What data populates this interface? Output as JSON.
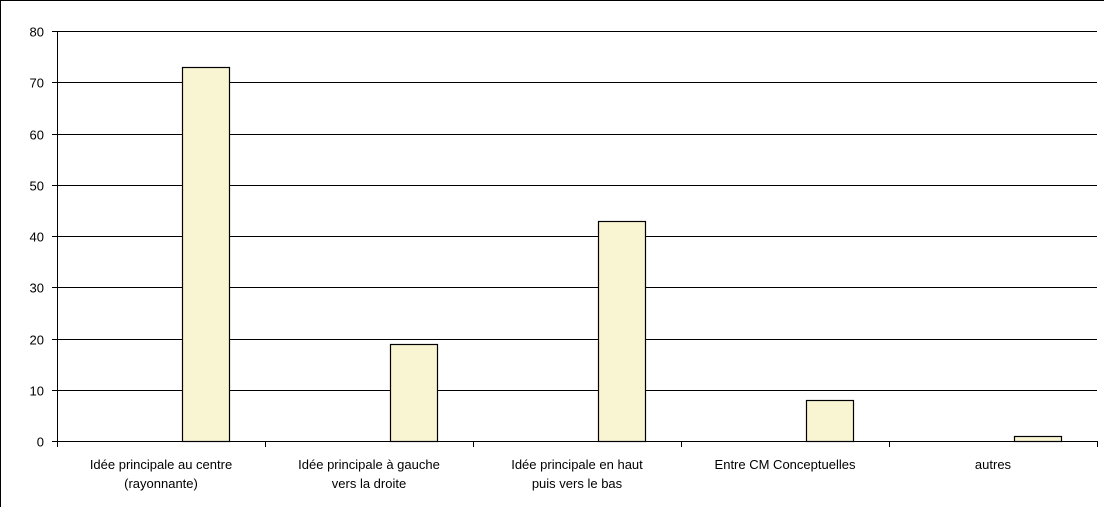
{
  "chart_data": {
    "type": "bar",
    "title": "",
    "xlabel": "",
    "ylabel": "",
    "ylim": [
      0,
      80
    ],
    "yticks": [
      0,
      10,
      20,
      30,
      40,
      50,
      60,
      70,
      80
    ],
    "grid": true,
    "legend": "none",
    "categories": [
      [
        "Idée principale au centre",
        "(rayonnante)"
      ],
      [
        "Idée principale à gauche",
        "vers la droite"
      ],
      [
        "Idée principale en haut",
        "puis vers le bas"
      ],
      [
        "Entre CM Conceptuelles"
      ],
      [
        "autres"
      ]
    ],
    "values": [
      73,
      19,
      43,
      8,
      1
    ]
  },
  "colors": {
    "bar_fill": "#f9f5d2",
    "bar_stroke": "#000000",
    "gridline": "#000000",
    "axis": "#000000"
  }
}
